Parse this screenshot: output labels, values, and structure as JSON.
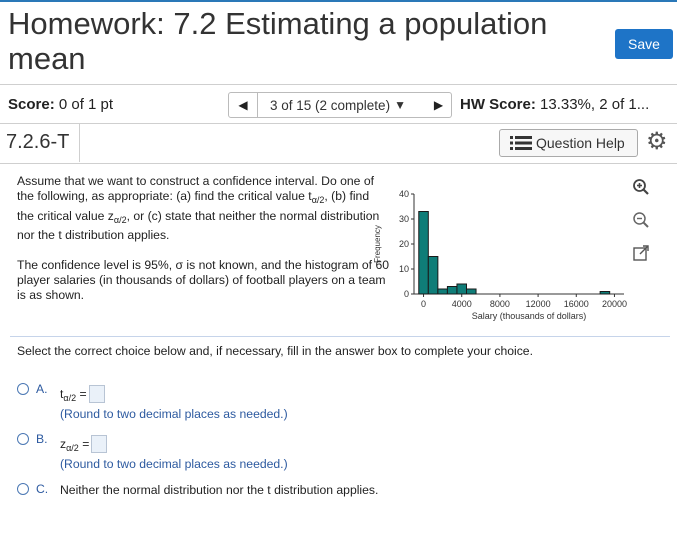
{
  "header": {
    "title": "Homework: 7.2 Estimating a population mean",
    "save_label": "Save"
  },
  "score_bar": {
    "score_label": "Score:",
    "score_value": "0 of 1 pt",
    "progress_text": "3 of 15 (2 complete)",
    "hw_score_label": "HW Score:",
    "hw_score_value": "13.33%, 2 of 1..."
  },
  "question_bar": {
    "question_id": "7.2.6-T",
    "help_label": "Question Help"
  },
  "question": {
    "para1_a": "Assume that we want to construct a confidence interval. Do one of the following, as appropriate: (a) find the critical value t",
    "para1_sub1": "α/2",
    "para1_b": ", (b) find the critical value z",
    "para1_sub2": "α/2",
    "para1_c": ", or (c) state that neither the normal distribution nor the t distribution applies.",
    "para2": "The confidence level is 95%, σ is not known, and the histogram of 60 player salaries (in thousands of dollars) of football players on a team is as shown."
  },
  "instruction": "Select the correct choice below and, if necessary, fill in the answer box to complete your choice.",
  "choices": [
    {
      "letter": "A.",
      "var": "t",
      "sub": "α/2",
      "eq": " =",
      "hint": "(Round to two decimal places as needed.)"
    },
    {
      "letter": "B.",
      "var": "z",
      "sub": "α/2",
      "eq": " =",
      "hint": "(Round to two decimal places as needed.)"
    },
    {
      "letter": "C.",
      "text": "Neither the normal distribution nor the t distribution applies."
    }
  ],
  "icons": {
    "prev": "triangle-left-icon",
    "next": "triangle-right-icon",
    "dropdown": "triangle-down-icon",
    "help": "list-icon",
    "settings": "gear-icon",
    "zoom_in": "zoom-in-icon",
    "zoom_out": "zoom-out-icon",
    "popout": "popout-icon"
  },
  "colors": {
    "accent": "#1e74c7",
    "bar_fill": "#0f7d78",
    "link_blue": "#2d5aa0"
  },
  "chart_data": {
    "type": "bar",
    "title": "",
    "xlabel": "Salary (thousands of dollars)",
    "ylabel": "Frequency",
    "bin_width": 1000,
    "x": [
      0,
      1000,
      2000,
      3000,
      4000,
      5000,
      6000,
      7000,
      8000,
      9000,
      10000,
      11000,
      12000,
      13000,
      14000,
      15000,
      16000,
      17000,
      18000,
      19000,
      20000
    ],
    "values": [
      33,
      15,
      2,
      3,
      4,
      2,
      0,
      0,
      0,
      0,
      0,
      0,
      0,
      0,
      0,
      0,
      0,
      0,
      0,
      1,
      0
    ],
    "xlim": [
      -1000,
      21000
    ],
    "ylim": [
      0,
      40
    ],
    "xticks": [
      "0",
      "4000",
      "8000",
      "12000",
      "16000",
      "20000"
    ],
    "xtick_values": [
      0,
      4000,
      8000,
      12000,
      16000,
      20000
    ],
    "yticks": [
      "0",
      "10",
      "20",
      "30",
      "40"
    ],
    "ytick_values": [
      0,
      10,
      20,
      30,
      40
    ],
    "grid": false
  }
}
